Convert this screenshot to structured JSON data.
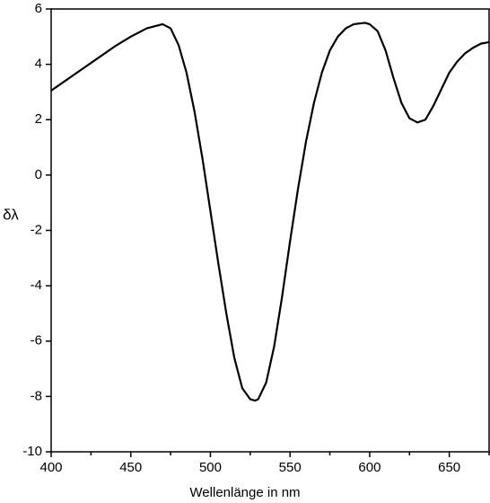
{
  "chart_data": {
    "type": "line",
    "x_label": "Wellenlänge in nm",
    "y_label": "δλ",
    "x": [
      400,
      410,
      420,
      430,
      440,
      450,
      460,
      470,
      475,
      480,
      485,
      490,
      495,
      500,
      505,
      510,
      515,
      520,
      525,
      528,
      530,
      535,
      540,
      545,
      550,
      555,
      560,
      565,
      570,
      575,
      580,
      585,
      590,
      597,
      600,
      605,
      610,
      615,
      620,
      625,
      630,
      635,
      640,
      645,
      650,
      655,
      660,
      665,
      670,
      675
    ],
    "series": [
      {
        "color": "#000000",
        "values": [
          3.05,
          3.45,
          3.85,
          4.25,
          4.65,
          5.0,
          5.3,
          5.45,
          5.3,
          4.7,
          3.7,
          2.3,
          0.6,
          -1.3,
          -3.2,
          -5.0,
          -6.6,
          -7.7,
          -8.1,
          -8.15,
          -8.1,
          -7.5,
          -6.2,
          -4.4,
          -2.4,
          -0.5,
          1.2,
          2.6,
          3.7,
          4.5,
          5.0,
          5.3,
          5.45,
          5.5,
          5.45,
          5.2,
          4.5,
          3.5,
          2.6,
          2.05,
          1.9,
          2.0,
          2.5,
          3.1,
          3.7,
          4.1,
          4.4,
          4.6,
          4.75,
          4.8
        ]
      }
    ],
    "xlim": [
      400,
      675
    ],
    "ylim": [
      -10,
      6
    ],
    "xticks": [
      400,
      450,
      500,
      550,
      600,
      650
    ],
    "xminorticks": [
      425,
      475,
      525,
      575,
      625,
      675
    ],
    "yticks": [
      6,
      4,
      2,
      0,
      -2,
      -4,
      -6,
      -8,
      -10
    ]
  }
}
